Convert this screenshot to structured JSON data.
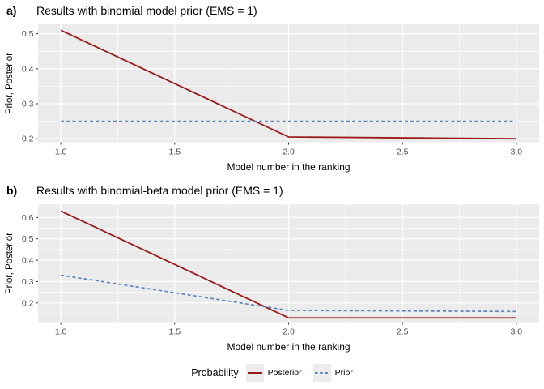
{
  "colors": {
    "panel_bg": "#EBEBEB",
    "grid": "#FFFFFF",
    "tick": "#333333",
    "tick_label": "#4D4D4D",
    "text": "#000000",
    "posterior": "#9A1B1B",
    "prior": "#5B83BD",
    "legend_key_bg": "#ECECEC"
  },
  "chart_data": [
    {
      "type": "line",
      "tag": "a)",
      "title": "Results with binomial model prior (EMS = 1)",
      "xlabel": "Model number in the ranking",
      "ylabel": "Prior, Posterior",
      "x": [
        1,
        2,
        3
      ],
      "series": [
        {
          "name": "Posterior",
          "style": "solid",
          "color": "posterior",
          "values": [
            0.51,
            0.205,
            0.2
          ]
        },
        {
          "name": "Prior",
          "style": "dashed",
          "color": "prior",
          "values": [
            0.25,
            0.25,
            0.25
          ]
        }
      ],
      "xlim": [
        0.9,
        3.1
      ],
      "ylim": [
        0.19,
        0.527
      ],
      "xtick_values": [
        1.0,
        1.5,
        2.0,
        2.5,
        3.0
      ],
      "xticks": [
        "1.0",
        "1.5",
        "2.0",
        "2.5",
        "3.0"
      ],
      "ytick_values": [
        0.2,
        0.3,
        0.4,
        0.5
      ],
      "yticks": [
        "0.2",
        "0.3",
        "0.4",
        "0.5"
      ],
      "xminor": [
        1.25,
        1.75,
        2.25,
        2.75
      ],
      "yminor": [
        0.25,
        0.35,
        0.45
      ],
      "grid": true,
      "legend_position": "bottom"
    },
    {
      "type": "line",
      "tag": "b)",
      "title": "Results with binomial-beta model prior (EMS = 1)",
      "xlabel": "Model number in the ranking",
      "ylabel": "Prior, Posterior",
      "x": [
        1,
        2,
        3
      ],
      "series": [
        {
          "name": "Posterior",
          "style": "solid",
          "color": "posterior",
          "values": [
            0.63,
            0.13,
            0.13
          ]
        },
        {
          "name": "Prior",
          "style": "dashed",
          "color": "prior",
          "values": [
            0.33,
            0.165,
            0.16
          ]
        }
      ],
      "xlim": [
        0.9,
        3.1
      ],
      "ylim": [
        0.11,
        0.66
      ],
      "xtick_values": [
        1.0,
        1.5,
        2.0,
        2.5,
        3.0
      ],
      "xticks": [
        "1.0",
        "1.5",
        "2.0",
        "2.5",
        "3.0"
      ],
      "ytick_values": [
        0.2,
        0.3,
        0.4,
        0.5,
        0.6
      ],
      "yticks": [
        "0.2",
        "0.3",
        "0.4",
        "0.5",
        "0.6"
      ],
      "xminor": [
        1.25,
        1.75,
        2.25,
        2.75
      ],
      "yminor": [
        0.15,
        0.25,
        0.35,
        0.45,
        0.55,
        0.65
      ],
      "grid": true,
      "legend_position": "bottom"
    }
  ],
  "legend": {
    "title": "Probability",
    "entries": [
      {
        "label": "Posterior",
        "style": "solid",
        "color": "posterior"
      },
      {
        "label": "Prior",
        "style": "dashed",
        "color": "prior"
      }
    ]
  }
}
